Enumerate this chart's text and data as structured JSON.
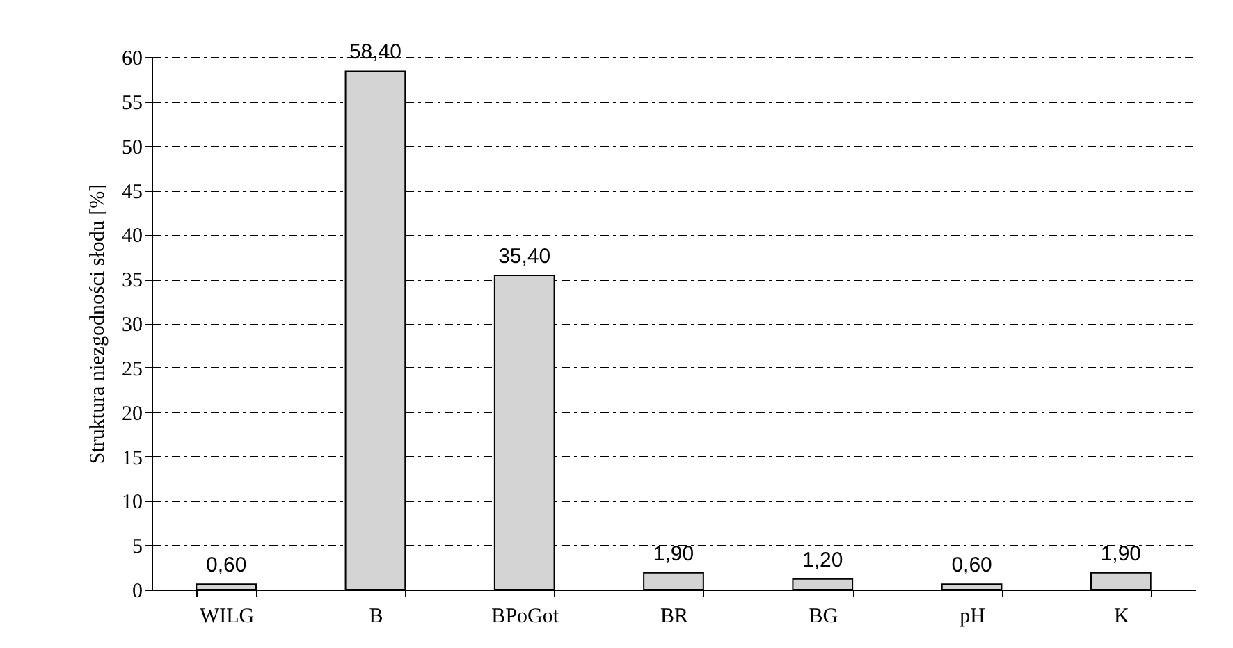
{
  "chart_data": {
    "type": "bar",
    "ylabel": "Struktura niezgodności słodu [%]",
    "categories": [
      "WILG",
      "B",
      "BPoGot",
      "BR",
      "BG",
      "pH",
      "K"
    ],
    "values": [
      0.6,
      58.4,
      35.4,
      1.9,
      1.2,
      0.6,
      1.9
    ],
    "value_labels": [
      "0,60",
      "58,40",
      "35,40",
      "1,90",
      "1,20",
      "0,60",
      "1,90"
    ],
    "color": "#d4d4d4",
    "ylim": [
      0,
      60
    ],
    "yticks": [
      0,
      5,
      10,
      15,
      20,
      25,
      30,
      35,
      40,
      45,
      50,
      55,
      60
    ],
    "grid": "y"
  }
}
